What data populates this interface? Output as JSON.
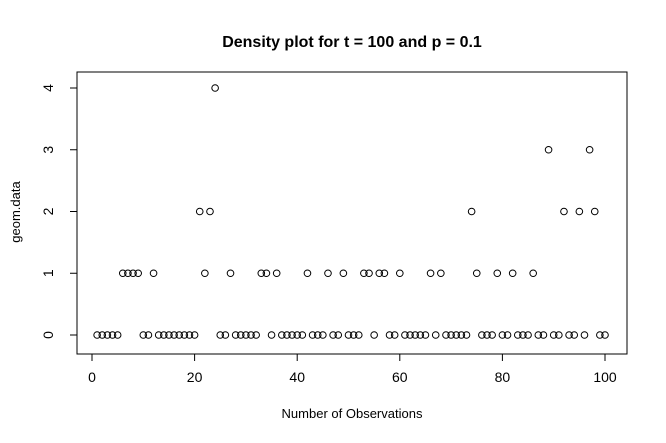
{
  "chart_data": {
    "type": "scatter",
    "title": "Density plot for t = 100 and p = 0.1",
    "xlabel": "Number of Observations",
    "ylabel": "geom.data",
    "xlim": [
      0,
      100
    ],
    "ylim": [
      0,
      4
    ],
    "x_ticks": [
      "0",
      "20",
      "40",
      "60",
      "80",
      "100"
    ],
    "y_ticks": [
      "0",
      "1",
      "2",
      "3",
      "4"
    ],
    "grid": false,
    "legend": "none",
    "point_style": "open-circle",
    "x": [
      1,
      2,
      3,
      4,
      5,
      6,
      7,
      8,
      9,
      10,
      11,
      12,
      13,
      14,
      15,
      16,
      17,
      18,
      19,
      20,
      21,
      22,
      23,
      24,
      25,
      26,
      27,
      28,
      29,
      30,
      31,
      32,
      33,
      34,
      35,
      36,
      37,
      38,
      39,
      40,
      41,
      42,
      43,
      44,
      45,
      46,
      47,
      48,
      49,
      50,
      51,
      52,
      53,
      54,
      55,
      56,
      57,
      58,
      59,
      60,
      61,
      62,
      63,
      64,
      65,
      66,
      67,
      68,
      69,
      70,
      71,
      72,
      73,
      74,
      75,
      76,
      77,
      78,
      79,
      80,
      81,
      82,
      83,
      84,
      85,
      86,
      87,
      88,
      89,
      90,
      91,
      92,
      93,
      94,
      95,
      96,
      97,
      98,
      99,
      100
    ],
    "y": [
      0,
      0,
      0,
      0,
      0,
      1,
      1,
      1,
      1,
      0,
      0,
      1,
      0,
      0,
      0,
      0,
      0,
      0,
      0,
      0,
      2,
      1,
      2,
      4,
      0,
      0,
      1,
      0,
      0,
      0,
      0,
      0,
      1,
      1,
      0,
      1,
      0,
      0,
      0,
      0,
      0,
      1,
      0,
      0,
      0,
      1,
      0,
      0,
      1,
      0,
      0,
      0,
      1,
      1,
      0,
      1,
      1,
      0,
      0,
      1,
      0,
      0,
      0,
      0,
      0,
      1,
      0,
      1,
      0,
      0,
      0,
      0,
      0,
      2,
      1,
      0,
      0,
      0,
      1,
      0,
      0,
      1,
      0,
      0,
      0,
      1,
      0,
      0,
      3,
      0,
      0,
      2,
      0,
      0,
      2,
      0,
      3,
      2,
      0,
      0
    ]
  }
}
